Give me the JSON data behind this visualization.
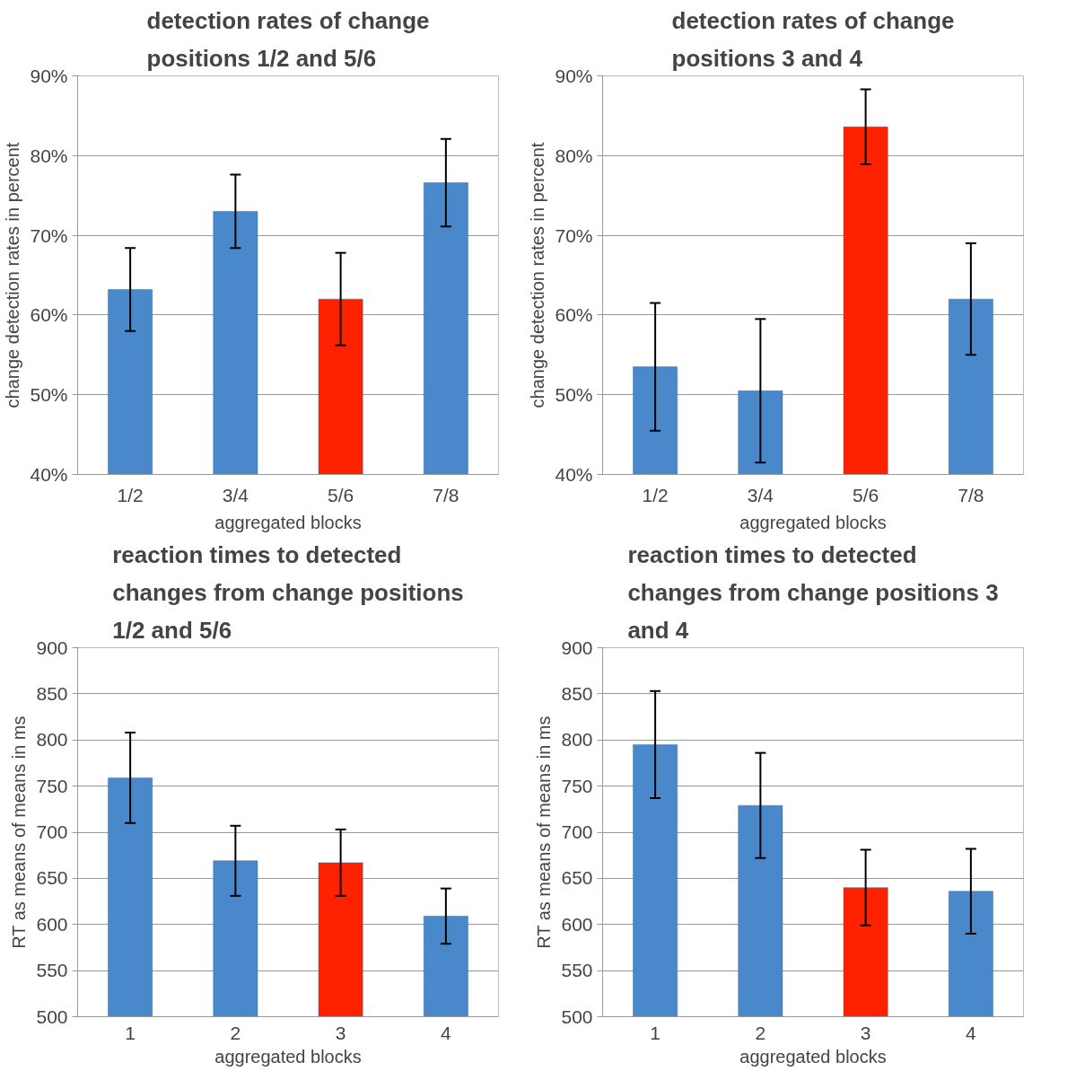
{
  "chart_data": [
    {
      "type": "bar",
      "title": "detection rates of change positions 1/2 and 5/6",
      "xlabel": "aggregated blocks",
      "ylabel": "change detection rates in percent",
      "categories": [
        "1/2",
        "3/4",
        "5/6",
        "7/8"
      ],
      "values": [
        63.2,
        73.0,
        62.0,
        76.6
      ],
      "errors": [
        5.2,
        4.6,
        5.8,
        5.5
      ],
      "colors": [
        "#4a88cc",
        "#4a88cc",
        "#ff2200",
        "#4a88cc"
      ],
      "ylim": [
        40,
        90
      ],
      "yticks": [
        {
          "value": 40,
          "label": "40%"
        },
        {
          "value": 50,
          "label": "50%"
        },
        {
          "value": 60,
          "label": "60%"
        },
        {
          "value": 70,
          "label": "70%"
        },
        {
          "value": 80,
          "label": "80%"
        },
        {
          "value": 90,
          "label": "90%"
        }
      ],
      "grid": "y"
    },
    {
      "type": "bar",
      "title": "detection rates of change positions 3 and 4",
      "xlabel": "aggregated blocks",
      "ylabel": "change detection rates in percent",
      "categories": [
        "1/2",
        "3/4",
        "5/6",
        "7/8"
      ],
      "values": [
        53.5,
        50.5,
        83.6,
        62.0
      ],
      "errors": [
        8.0,
        9.0,
        4.7,
        7.0
      ],
      "colors": [
        "#4a88cc",
        "#4a88cc",
        "#ff2200",
        "#4a88cc"
      ],
      "ylim": [
        40,
        90
      ],
      "yticks": [
        {
          "value": 40,
          "label": "40%"
        },
        {
          "value": 50,
          "label": "50%"
        },
        {
          "value": 60,
          "label": "60%"
        },
        {
          "value": 70,
          "label": "70%"
        },
        {
          "value": 80,
          "label": "80%"
        },
        {
          "value": 90,
          "label": "90%"
        }
      ],
      "grid": "y"
    },
    {
      "type": "bar",
      "title": "reaction times to detected changes from change positions 1/2 and 5/6",
      "xlabel": "aggregated blocks",
      "ylabel": "RT as means of means in ms",
      "categories": [
        "1",
        "2",
        "3",
        "4"
      ],
      "values": [
        759,
        669,
        667,
        609
      ],
      "errors": [
        49,
        38,
        36,
        30
      ],
      "colors": [
        "#4a88cc",
        "#4a88cc",
        "#ff2200",
        "#4a88cc"
      ],
      "ylim": [
        500,
        900
      ],
      "yticks": [
        500,
        550,
        600,
        650,
        700,
        750,
        800,
        850,
        900
      ],
      "grid": "y"
    },
    {
      "type": "bar",
      "title": "reaction times to detected changes from change positions 3 and 4",
      "xlabel": "aggregated blocks",
      "ylabel": "RT as means of means in ms",
      "categories": [
        "1",
        "2",
        "3",
        "4"
      ],
      "values": [
        795,
        729,
        640,
        636
      ],
      "errors": [
        58,
        57,
        41,
        46
      ],
      "colors": [
        "#4a88cc",
        "#4a88cc",
        "#ff2200",
        "#4a88cc"
      ],
      "ylim": [
        500,
        900
      ],
      "yticks": [
        500,
        550,
        600,
        650,
        700,
        750,
        800,
        850,
        900
      ],
      "grid": "y"
    }
  ]
}
